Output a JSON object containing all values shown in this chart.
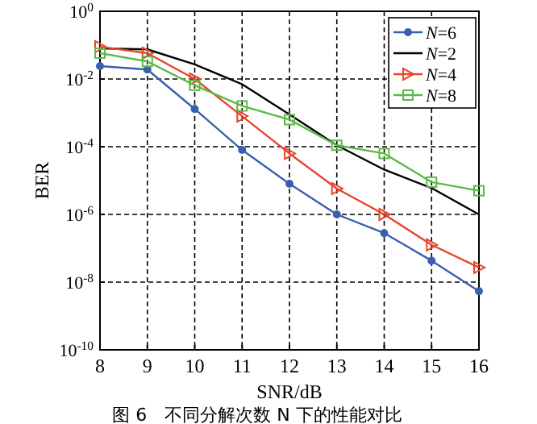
{
  "chart_data": {
    "type": "line",
    "title": "图 6　不同分解次数 N 下的性能对比",
    "xlabel": "SNR/dB",
    "ylabel": "BER",
    "log": "y",
    "grid": true,
    "legend": "top right",
    "line_style": "solid",
    "x": [
      8,
      9,
      10,
      11,
      12,
      13,
      14,
      15,
      16
    ],
    "xlim": [
      8,
      16
    ],
    "xticks": [
      8,
      9,
      10,
      11,
      12,
      13,
      14,
      15,
      16
    ],
    "ylim": [
      1e-10,
      1
    ],
    "yticks": [
      {
        "value": 1e-10,
        "label": "10$^{-10}$"
      },
      {
        "value": 1e-08,
        "label": "10$^{-8}$"
      },
      {
        "value": 1e-06,
        "label": "10$^{-6}$"
      },
      {
        "value": 0.0001,
        "label": "10$^{-4}$"
      },
      {
        "value": 0.01,
        "label": "10$^{-2}$"
      },
      {
        "value": 1,
        "label": "10$^{0}$"
      }
    ],
    "series": [
      {
        "name": "*N*=6",
        "color": "#3a5fb0",
        "marker": "circle",
        "values": [
          0.024,
          0.019,
          0.0013,
          8e-05,
          8e-06,
          1e-06,
          2.8e-07,
          4.3e-08,
          5.4e-09
        ]
      },
      {
        "name": "*N*=2",
        "color": "#000000",
        "marker": "none",
        "values": [
          0.08,
          0.075,
          0.027,
          0.007,
          0.0009,
          0.00011,
          2.1e-05,
          6e-06,
          1e-06
        ]
      },
      {
        "name": "*N*=4",
        "color": "#e8452c",
        "marker": "triangle",
        "values": [
          0.09,
          0.058,
          0.01,
          0.0008,
          6.3e-05,
          5.8e-06,
          1e-06,
          1.26e-07,
          2.7e-08
        ]
      },
      {
        "name": "*N*=8",
        "color": "#5cb848",
        "marker": "square",
        "values": [
          0.058,
          0.033,
          0.0065,
          0.0016,
          0.00063,
          0.00011,
          6.3e-05,
          9e-06,
          5e-06
        ]
      }
    ]
  }
}
